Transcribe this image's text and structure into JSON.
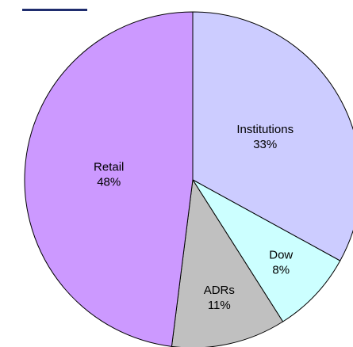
{
  "chart_data": {
    "type": "pie",
    "categories": [
      "Institutions",
      "Dow",
      "ADRs",
      "Retail"
    ],
    "values": [
      33,
      8,
      11,
      48
    ],
    "value_labels": [
      "33%",
      "8%",
      "11%",
      "48%"
    ],
    "colors": [
      "#ccccff",
      "#ccffff",
      "#c0c0c0",
      "#cc99ff"
    ]
  }
}
